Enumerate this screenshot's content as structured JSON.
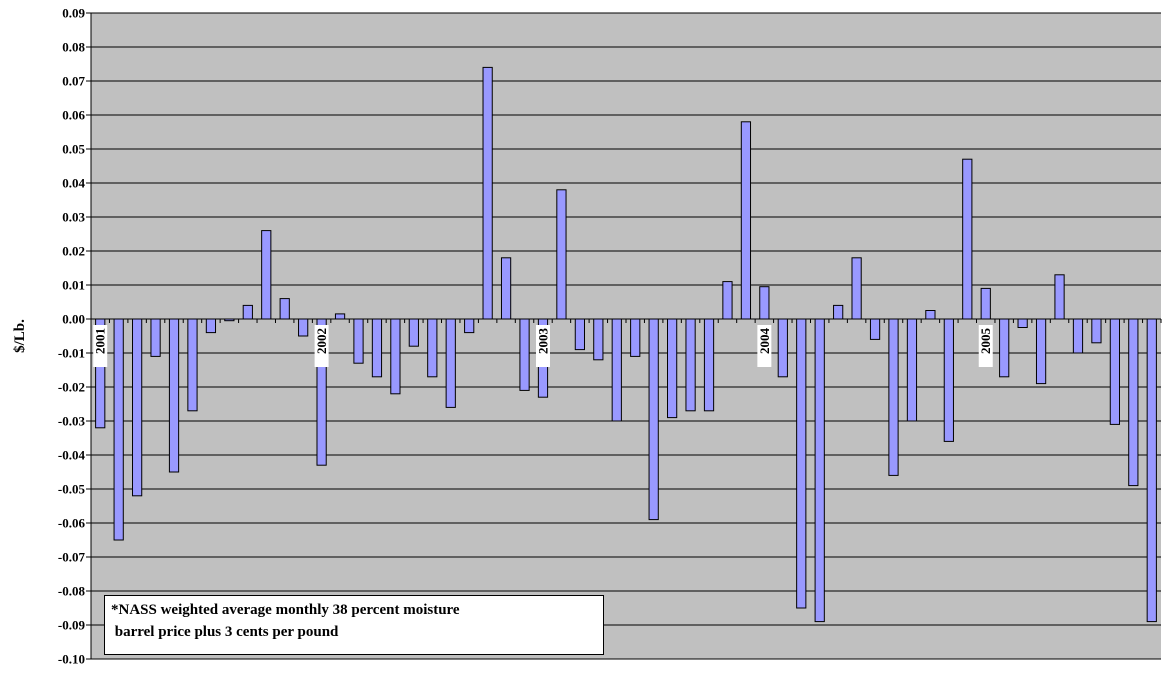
{
  "chart_data": {
    "type": "bar",
    "ylabel": "$/Lb.",
    "ylim": [
      -0.1,
      0.09
    ],
    "y_ticks": [
      "0.09",
      "0.08",
      "0.07",
      "0.06",
      "0.05",
      "0.04",
      "0.03",
      "0.02",
      "0.01",
      "0.00",
      "-0.01",
      "-0.02",
      "-0.03",
      "-0.04",
      "-0.05",
      "-0.06",
      "-0.07",
      "-0.08",
      "-0.09",
      "-0.10"
    ],
    "grid": true,
    "year_labels": [
      {
        "text": "2001",
        "index": 0
      },
      {
        "text": "2002",
        "index": 12
      },
      {
        "text": "2003",
        "index": 24
      },
      {
        "text": "2004",
        "index": 36
      },
      {
        "text": "2005",
        "index": 48
      }
    ],
    "values": [
      -0.032,
      -0.065,
      -0.052,
      -0.011,
      -0.045,
      -0.027,
      -0.004,
      -0.0005,
      0.004,
      0.026,
      0.006,
      -0.005,
      -0.043,
      0.0015,
      -0.013,
      -0.017,
      -0.022,
      -0.008,
      -0.017,
      -0.026,
      -0.004,
      0.074,
      0.018,
      -0.021,
      -0.023,
      0.038,
      -0.009,
      -0.012,
      -0.03,
      -0.011,
      -0.059,
      -0.029,
      -0.027,
      -0.027,
      0.011,
      0.058,
      0.0095,
      -0.017,
      -0.085,
      -0.089,
      0.004,
      0.018,
      -0.006,
      -0.046,
      -0.03,
      0.0025,
      -0.036,
      0.047,
      0.009,
      -0.017,
      -0.0025,
      -0.019,
      0.013,
      -0.01,
      -0.007,
      -0.031,
      -0.049,
      -0.089
    ],
    "bar_color": "#9999ff",
    "plot_bg": "#c0c0c0"
  },
  "note": {
    "line1": "*NASS weighted average monthly 38 percent moisture",
    "line2": " barrel price plus 3 cents per pound"
  }
}
